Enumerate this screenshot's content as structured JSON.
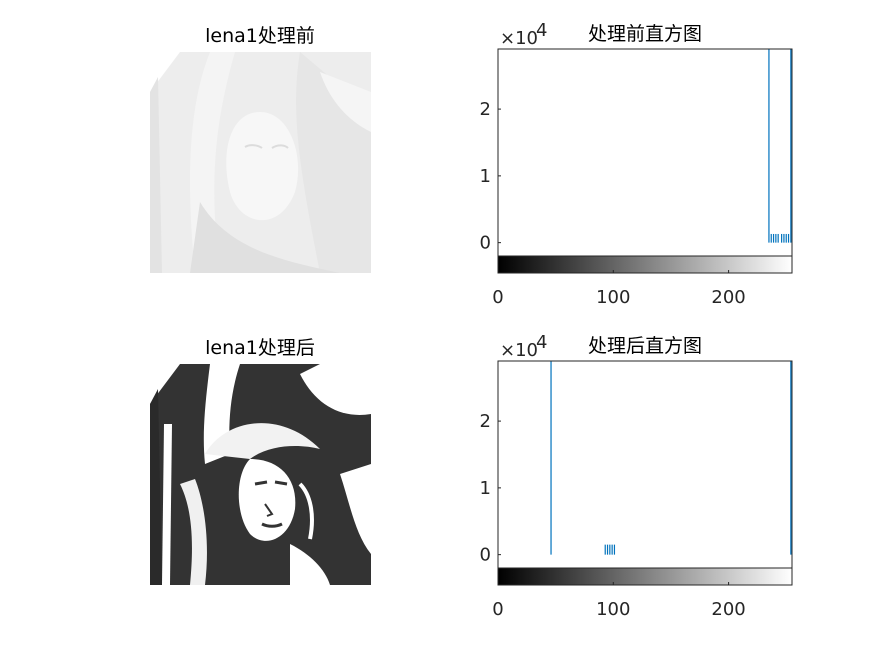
{
  "figure": {
    "panels": [
      {
        "id": "img1",
        "title": "lena1处理前",
        "image_tone": "light"
      },
      {
        "id": "img2",
        "title": "lena1处理后",
        "image_tone": "dark"
      }
    ]
  },
  "chart_data": [
    {
      "type": "bar",
      "title": "处理前直方图",
      "xlabel": "",
      "ylabel": "",
      "xlim": [
        0,
        255
      ],
      "ylim": [
        -2000,
        29000
      ],
      "xticks": [
        "0",
        "100",
        "200"
      ],
      "xtick_values": [
        0,
        100,
        200
      ],
      "yticks": [
        "0",
        "1",
        "2"
      ],
      "ytick_values": [
        0,
        10000,
        20000
      ],
      "y_multiplier_label": "×10",
      "y_multiplier_exponent": "4",
      "series_color": "#0072BD",
      "colorbar": true,
      "bars": [
        {
          "x": 235,
          "y": 29000
        },
        {
          "x": 237,
          "y": 1300
        },
        {
          "x": 239,
          "y": 1300
        },
        {
          "x": 241,
          "y": 1300
        },
        {
          "x": 243,
          "y": 1300
        },
        {
          "x": 246,
          "y": 1300
        },
        {
          "x": 248,
          "y": 1300
        },
        {
          "x": 250,
          "y": 1300
        },
        {
          "x": 252,
          "y": 1300
        },
        {
          "x": 254,
          "y": 29000
        }
      ]
    },
    {
      "type": "bar",
      "title": "处理后直方图",
      "xlabel": "",
      "ylabel": "",
      "xlim": [
        0,
        255
      ],
      "ylim": [
        -2000,
        29000
      ],
      "xticks": [
        "0",
        "100",
        "200"
      ],
      "xtick_values": [
        0,
        100,
        200
      ],
      "yticks": [
        "0",
        "1",
        "2"
      ],
      "ytick_values": [
        0,
        10000,
        20000
      ],
      "y_multiplier_label": "×10",
      "y_multiplier_exponent": "4",
      "series_color": "#0072BD",
      "colorbar": true,
      "bars": [
        {
          "x": 46,
          "y": 29000
        },
        {
          "x": 93,
          "y": 1500
        },
        {
          "x": 95,
          "y": 1500
        },
        {
          "x": 97,
          "y": 1500
        },
        {
          "x": 99,
          "y": 1500
        },
        {
          "x": 101,
          "y": 1500
        },
        {
          "x": 254,
          "y": 29000
        }
      ]
    }
  ]
}
